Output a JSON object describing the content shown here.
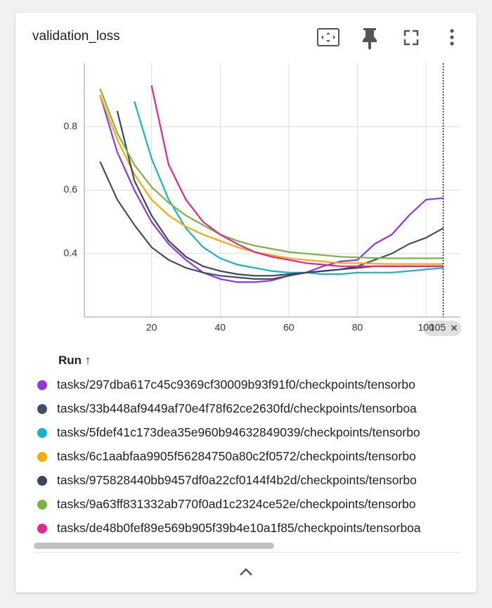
{
  "card": {
    "title": "validation_loss",
    "run_column": "Run ↑"
  },
  "chart_data": {
    "type": "line",
    "x": [
      5,
      10,
      15,
      20,
      25,
      30,
      35,
      40,
      45,
      50,
      55,
      60,
      65,
      70,
      75,
      80,
      85,
      90,
      95,
      100,
      105
    ],
    "xlim": [
      0,
      110
    ],
    "xticks": [
      20,
      40,
      60,
      80,
      100
    ],
    "ylim": [
      0.2,
      1.0
    ],
    "yticks": [
      0.4,
      0.6,
      0.8
    ],
    "grid": true,
    "cursor_x": 105,
    "series": [
      {
        "name": "tasks/297dba617c45c9369cf30009b93f91f0/checkpoints/tensorbo",
        "color": "#9334e6",
        "values": [
          0.9,
          0.72,
          0.6,
          0.5,
          0.43,
          0.38,
          0.34,
          0.32,
          0.31,
          0.31,
          0.315,
          0.33,
          0.34,
          0.36,
          0.375,
          0.38,
          0.43,
          0.46,
          0.52,
          0.57,
          0.575
        ]
      },
      {
        "name": "tasks/33b448af9449af70e4f78f62ce2630fd/checkpoints/tensorboa",
        "color": "#425066",
        "values": [
          0.69,
          0.57,
          0.49,
          0.42,
          0.38,
          0.355,
          0.34,
          0.33,
          0.325,
          0.32,
          0.32,
          0.33,
          0.34,
          0.345,
          0.35,
          0.36,
          0.38,
          0.4,
          0.43,
          0.45,
          0.48
        ]
      },
      {
        "name": "tasks/5fdef41c173dea35e960b94632849039/checkpoints/tensorbo",
        "color": "#12b5cb",
        "values": [
          null,
          null,
          0.88,
          0.7,
          0.57,
          0.48,
          0.42,
          0.385,
          0.365,
          0.355,
          0.345,
          0.34,
          0.34,
          0.335,
          0.335,
          0.34,
          0.34,
          0.34,
          0.345,
          0.35,
          0.355
        ]
      },
      {
        "name": "tasks/6c1aabfaa9905f56284750a80c2f0572/checkpoints/tensorbo",
        "color": "#f9ab00",
        "values": [
          0.9,
          0.76,
          0.65,
          0.57,
          0.52,
          0.485,
          0.46,
          0.44,
          0.42,
          0.405,
          0.395,
          0.385,
          0.38,
          0.375,
          0.37,
          0.37,
          0.368,
          0.367,
          0.367,
          0.367,
          0.367
        ]
      },
      {
        "name": "tasks/975828440bb9457df0a22cf0144f4b2d/checkpoints/tensorbo",
        "color": "#3a475c",
        "values": [
          null,
          0.85,
          0.63,
          0.52,
          0.44,
          0.39,
          0.36,
          0.345,
          0.335,
          0.33,
          0.33,
          0.335,
          0.34,
          0.345,
          0.35,
          0.355,
          0.36,
          0.36,
          0.36,
          0.36,
          0.36
        ]
      },
      {
        "name": "tasks/9a63ff831332ab770f0ad1c2324ce52e/checkpoints/tensorbo",
        "color": "#7cb342",
        "values": [
          0.92,
          0.78,
          0.68,
          0.61,
          0.56,
          0.52,
          0.49,
          0.46,
          0.44,
          0.425,
          0.415,
          0.405,
          0.4,
          0.395,
          0.39,
          0.388,
          0.386,
          0.385,
          0.385,
          0.385,
          0.385
        ]
      },
      {
        "name": "tasks/de48b0fef89e569b905f39b4e10a1f85/checkpoints/tensorboa",
        "color": "#e52592",
        "values": [
          null,
          null,
          null,
          0.93,
          0.68,
          0.57,
          0.5,
          0.46,
          0.43,
          0.405,
          0.39,
          0.38,
          0.37,
          0.365,
          0.36,
          0.36,
          0.36,
          0.36,
          0.36,
          0.36,
          0.36
        ]
      }
    ]
  }
}
